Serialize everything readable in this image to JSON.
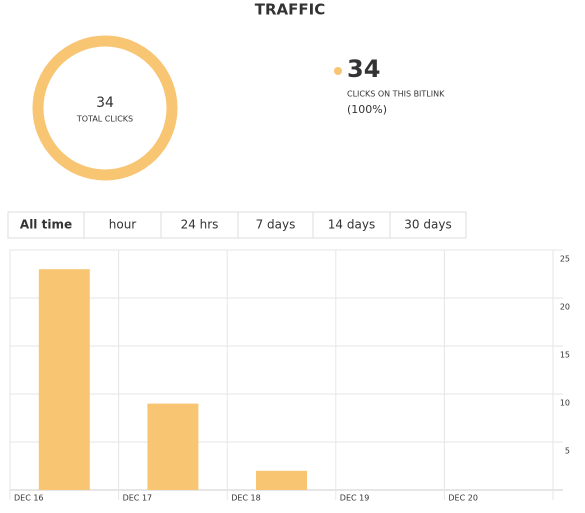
{
  "header": {
    "title": "TRAFFIC"
  },
  "donut": {
    "total": 34,
    "label": "TOTAL CLICKS",
    "color": "#f8c572"
  },
  "legend": {
    "value": 34,
    "label": "CLICKS ON THIS BITLINK",
    "percent": "(100%)"
  },
  "tabs": [
    "All time",
    "hour",
    "24 hrs",
    "7 days",
    "14 days",
    "30 days"
  ],
  "chart_data": {
    "type": "bar",
    "categories": [
      "DEC 16",
      "DEC 17",
      "DEC 18",
      "DEC 19",
      "DEC 20"
    ],
    "values": [
      23,
      9,
      2,
      0,
      0
    ],
    "color": "#f8c572",
    "ylim": [
      0,
      25
    ],
    "yticks": [
      5,
      10,
      15,
      20,
      25
    ],
    "grid": true
  }
}
